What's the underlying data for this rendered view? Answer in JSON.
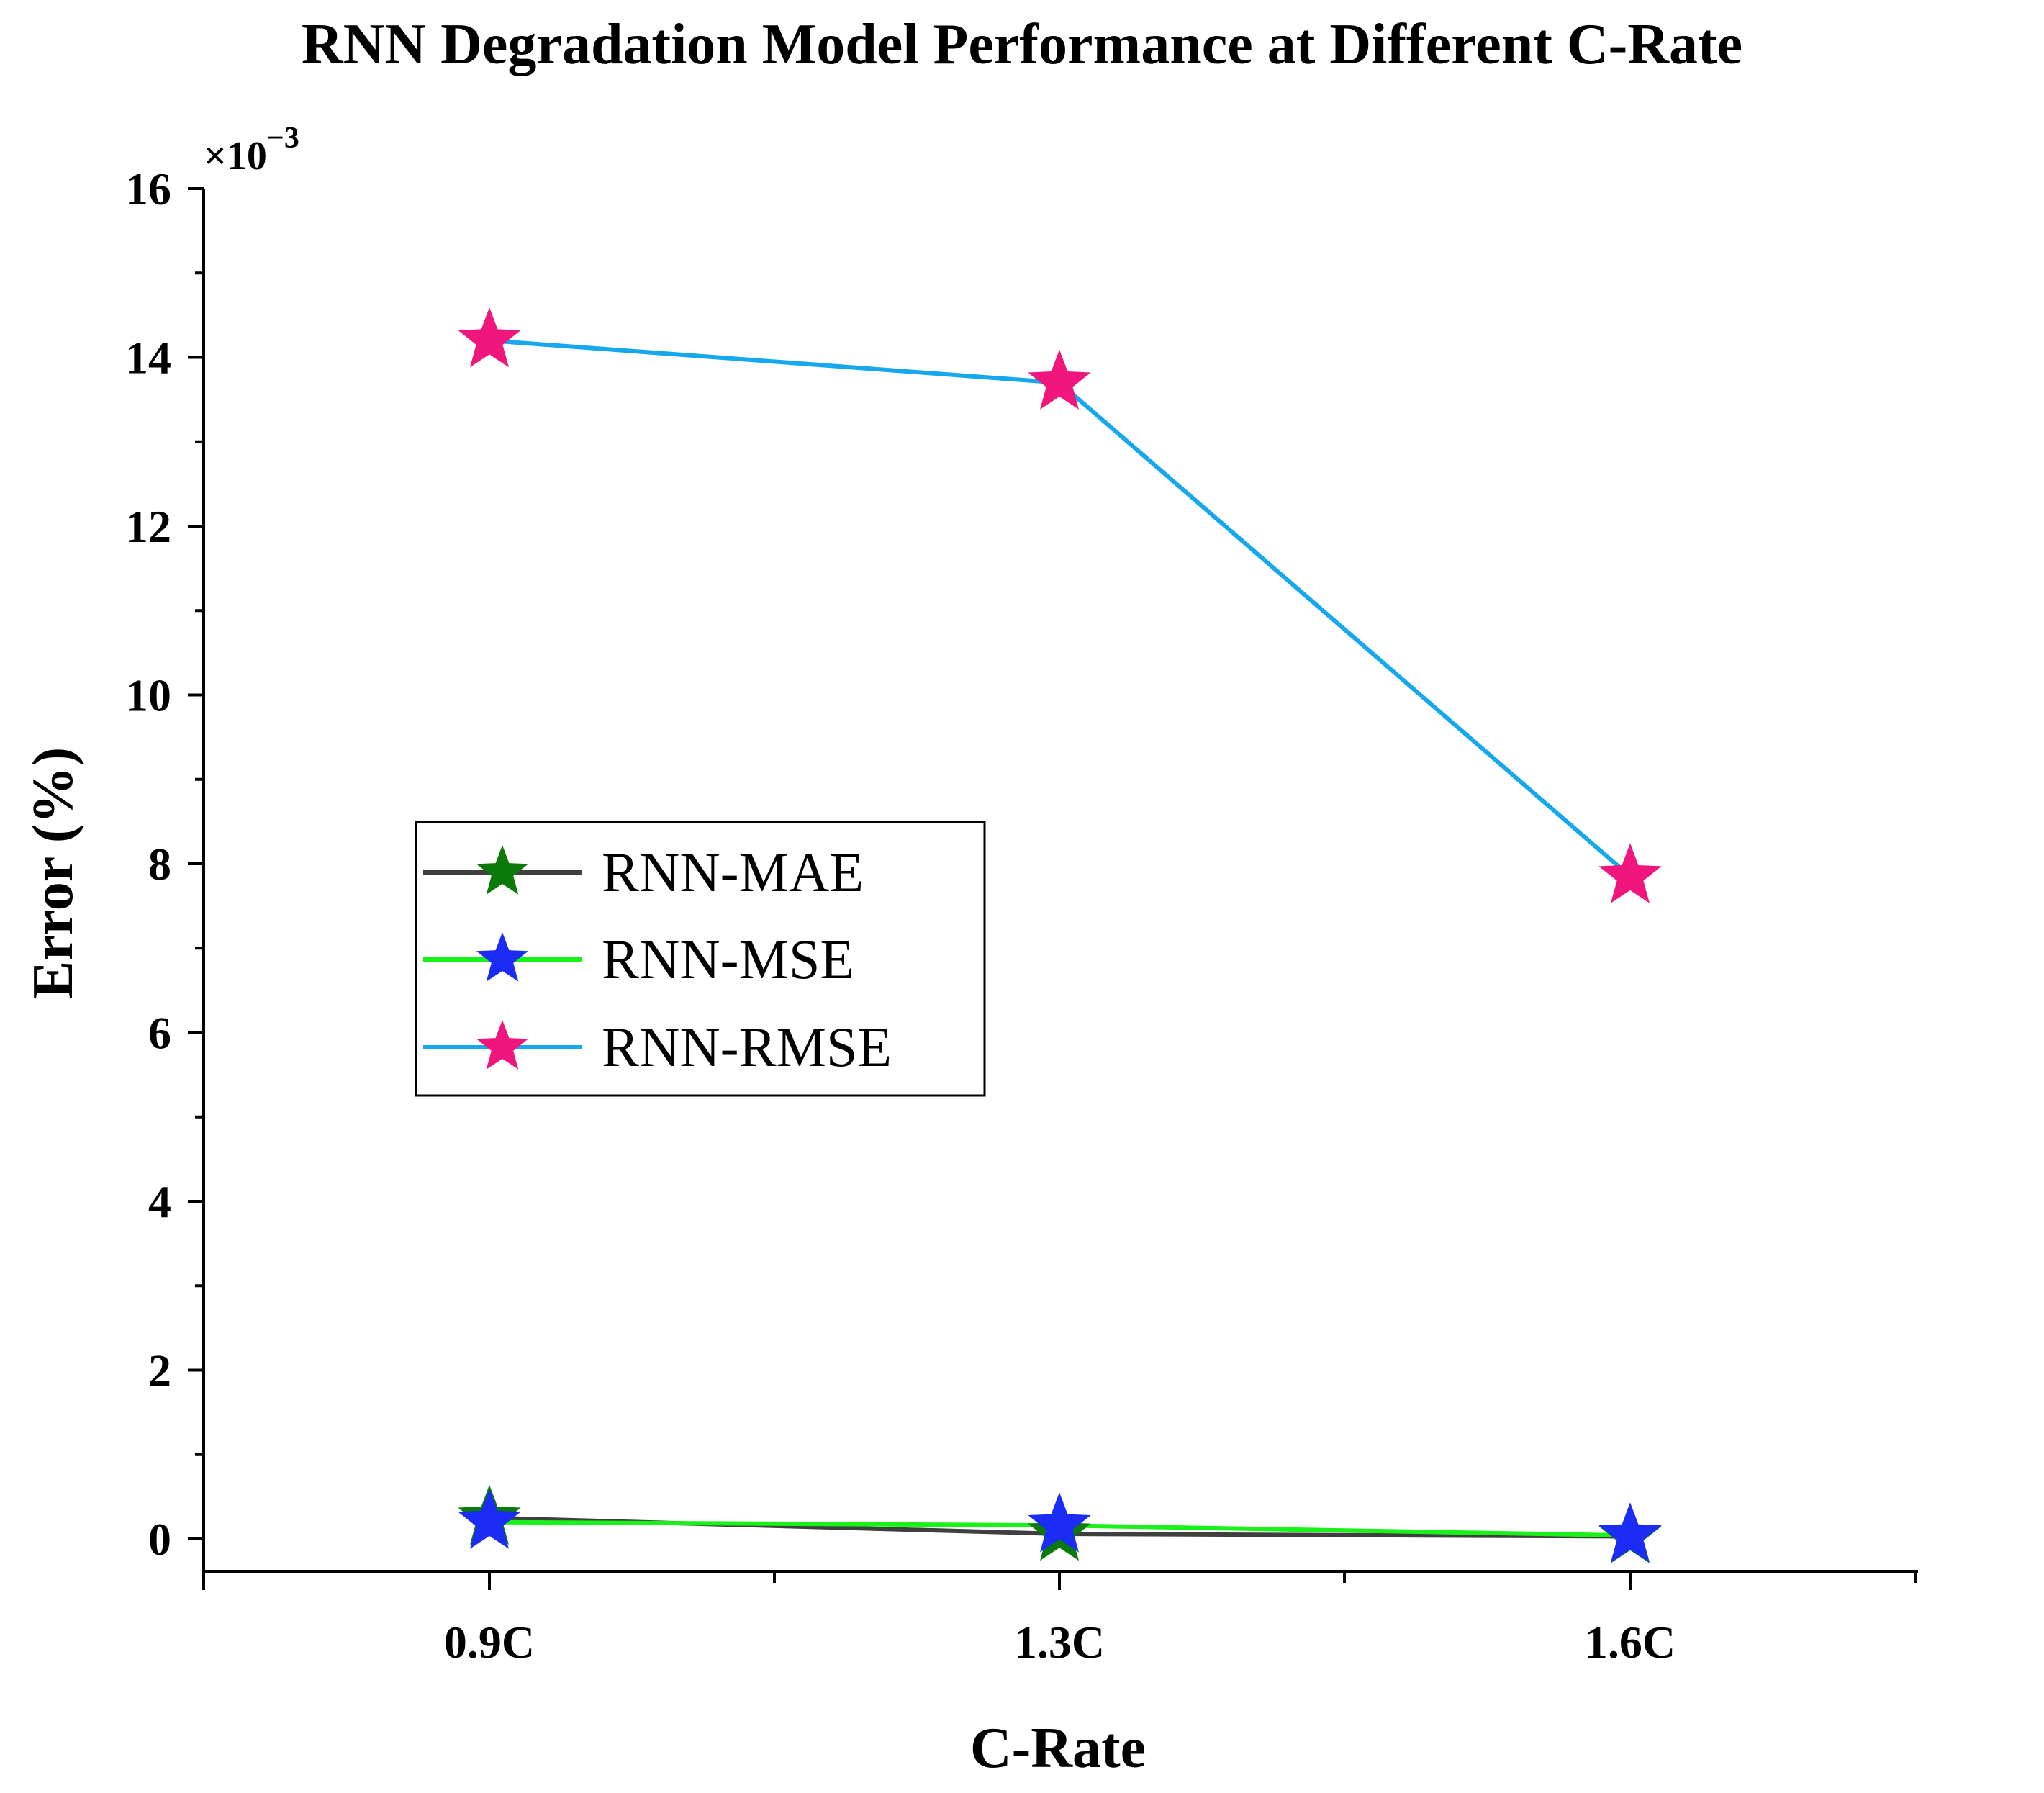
{
  "chart_data": {
    "type": "line",
    "title": "RNN Degradation Model Performance at Different C-Rate",
    "xlabel": "C-Rate",
    "ylabel": "Error (%)",
    "y_multiplier": "×10",
    "y_exponent": "−3",
    "categories": [
      "0.9C",
      "1.3C",
      "1.6C"
    ],
    "ylim": [
      -0.35,
      16
    ],
    "yticks": [
      "0",
      "2",
      "4",
      "6",
      "8",
      "10",
      "12",
      "14",
      "16"
    ],
    "legend_position": "center-left",
    "series": [
      {
        "name": "RNN-MAE",
        "values": [
          0.25,
          0.06,
          0.03
        ],
        "line_color": "#3f3f3f",
        "marker_color": "#0b7a0b",
        "marker": "star"
      },
      {
        "name": "RNN-MSE",
        "values": [
          0.2,
          0.16,
          0.04
        ],
        "line_color": "#19f219",
        "marker_color": "#1a2cf5",
        "marker": "star"
      },
      {
        "name": "RNN-RMSE",
        "values": [
          14.2,
          13.7,
          7.85
        ],
        "line_color": "#16a8ee",
        "marker_color": "#f0167e",
        "marker": "star"
      }
    ]
  }
}
